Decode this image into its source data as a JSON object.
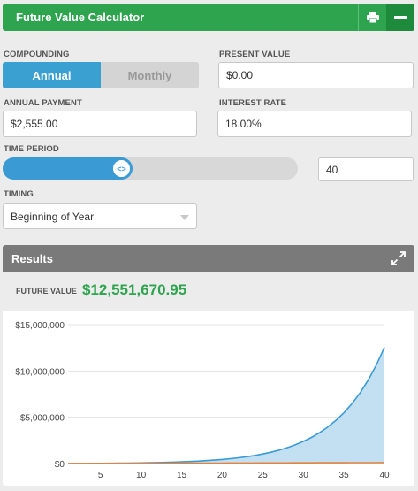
{
  "header": {
    "title": "Future Value Calculator",
    "print_icon": "print-icon",
    "minimize_icon": "minus-icon"
  },
  "compounding": {
    "label": "COMPOUNDING",
    "options": [
      "Annual",
      "Monthly"
    ],
    "selected": "Annual"
  },
  "present_value": {
    "label": "PRESENT VALUE",
    "value": "$0.00"
  },
  "annual_payment": {
    "label": "ANNUAL PAYMENT",
    "value": "$2,555.00"
  },
  "interest_rate": {
    "label": "INTEREST RATE",
    "value": "18.00%"
  },
  "time_period": {
    "label": "TIME PERIOD",
    "value": "40",
    "slider_fraction": 0.44,
    "thumb_glyph": "<>"
  },
  "timing": {
    "label": "TIMING",
    "value": "Beginning of Year"
  },
  "results": {
    "title": "Results",
    "expand_icon": "expand-icon",
    "future_value_label": "FUTURE VALUE",
    "future_value": "$12,551,670.95"
  },
  "colors": {
    "green": "#2ea44f",
    "blue": "#3a9ad4",
    "area_fill": "#c3e0f2",
    "orange": "#e8823a"
  },
  "chart_data": {
    "type": "area",
    "x": [
      1,
      2,
      3,
      4,
      5,
      6,
      7,
      8,
      9,
      10,
      11,
      12,
      13,
      14,
      15,
      16,
      17,
      18,
      19,
      20,
      21,
      22,
      23,
      24,
      25,
      26,
      27,
      28,
      29,
      30,
      31,
      32,
      33,
      34,
      35,
      36,
      37,
      38,
      39,
      40
    ],
    "x_ticks": [
      5,
      10,
      15,
      20,
      25,
      30,
      35,
      40
    ],
    "xlim": [
      1,
      40
    ],
    "ylim": [
      0,
      15000000
    ],
    "y_ticks": [
      0,
      5000000,
      10000000,
      15000000
    ],
    "y_tick_labels": [
      "$0",
      "$5,000,000",
      "$10,000,000",
      "$15,000,000"
    ],
    "grid": true,
    "series": [
      {
        "values": [
          3015,
          6572,
          10771,
          15725,
          21571,
          28469,
          36609,
          46214,
          57548,
          70923,
          86704,
          105327,
          127302,
          153233,
          183831,
          219937,
          262543,
          312818,
          372143,
          442147,
          524753,
          622227,
          737248,
          872973,
          1033128,
          1222109,
          1445106,
          1708241,
          2018743,
          2385133,
          2817476,
          3327650,
          3929656,
          4640024,
          5478258,
          6467376,
          7634535,
          9011784,
          10636936,
          12551671
        ],
        "color": "#3a9ad4",
        "fill": "#c3e0f2"
      },
      {
        "values": [
          2555,
          5110,
          7665,
          10220,
          12775,
          15330,
          17885,
          20440,
          22995,
          25550,
          28105,
          30660,
          33215,
          35770,
          38325,
          40880,
          43435,
          45990,
          48545,
          51100,
          53655,
          56210,
          58765,
          61320,
          63875,
          66430,
          68985,
          71540,
          74095,
          76650,
          79205,
          81760,
          84315,
          86870,
          89425,
          91980,
          94535,
          97090,
          99645,
          102200
        ],
        "color": "#e8823a"
      }
    ]
  }
}
